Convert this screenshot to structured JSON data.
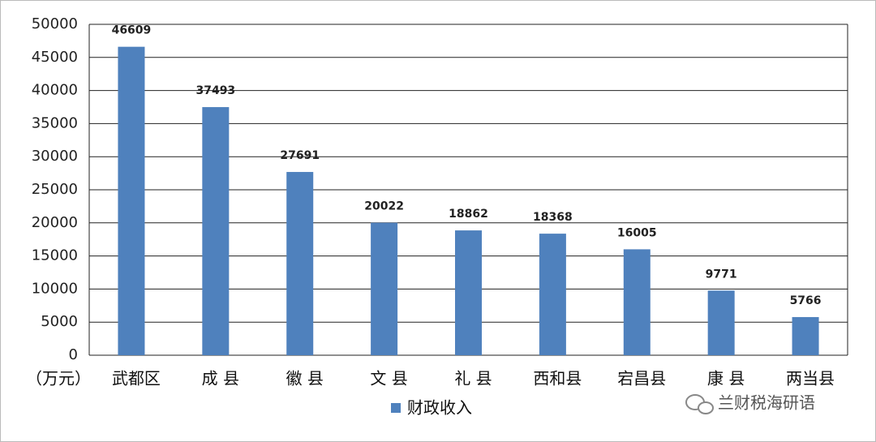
{
  "chart_data": {
    "type": "bar",
    "categories": [
      "武都区",
      "成 县",
      "徽 县",
      "文 县",
      "礼 县",
      "西和县",
      "宕昌县",
      "康 县",
      "两当县"
    ],
    "series": [
      {
        "name": "财政收入",
        "color": "#4f81bd",
        "values": [
          46609,
          37493,
          27691,
          20022,
          18862,
          18368,
          16005,
          9771,
          5766
        ]
      }
    ],
    "ylim": [
      0,
      50000
    ],
    "yticks": [
      0,
      5000,
      10000,
      15000,
      20000,
      25000,
      30000,
      35000,
      40000,
      45000,
      50000
    ],
    "grid": true,
    "unit_label": "（万元）",
    "watermark": "兰财税海研语"
  }
}
